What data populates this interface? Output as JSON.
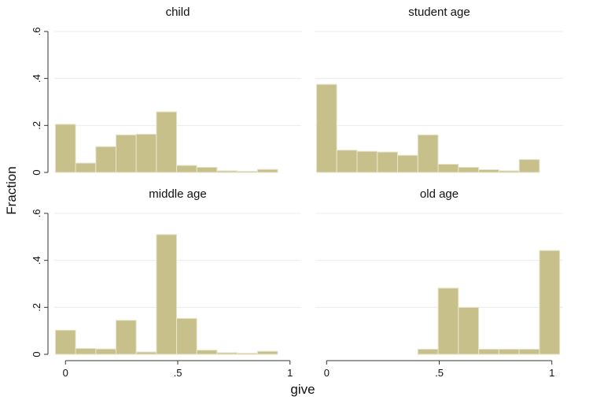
{
  "chart_data": {
    "type": "bar",
    "layout": "2x2 facets",
    "xlabel": "give",
    "ylabel": "Fraction",
    "xlim": [
      -0.05,
      1.05
    ],
    "ylim": [
      0,
      0.62
    ],
    "xticks": [
      0,
      0.5,
      1
    ],
    "xtick_labels": [
      "0",
      ".5",
      "1"
    ],
    "yticks": [
      0,
      0.2,
      0.4,
      0.6
    ],
    "ytick_labels": [
      "0",
      ".2",
      ".4",
      ".6"
    ],
    "bar_color": "#c8c08a",
    "bins": [
      [
        -0.045,
        0.045
      ],
      [
        0.045,
        0.135
      ],
      [
        0.135,
        0.225
      ],
      [
        0.225,
        0.315
      ],
      [
        0.315,
        0.405
      ],
      [
        0.405,
        0.495
      ],
      [
        0.495,
        0.585
      ],
      [
        0.585,
        0.675
      ],
      [
        0.675,
        0.765
      ],
      [
        0.765,
        0.855
      ],
      [
        0.855,
        0.945
      ],
      [
        0.945,
        1.035
      ]
    ],
    "panels": [
      {
        "title": "child",
        "values": [
          0.205,
          0.04,
          0.11,
          0.16,
          0.163,
          0.258,
          0.03,
          0.022,
          0.007,
          0.005,
          0.013,
          0
        ]
      },
      {
        "title": "student age",
        "values": [
          0.375,
          0.095,
          0.09,
          0.087,
          0.073,
          0.16,
          0.035,
          0.022,
          0.012,
          0.007,
          0.055,
          0
        ]
      },
      {
        "title": "middle age",
        "values": [
          0.103,
          0.025,
          0.023,
          0.145,
          0.01,
          0.51,
          0.153,
          0.018,
          0.007,
          0.005,
          0.013,
          0
        ]
      },
      {
        "title": "old age",
        "values": [
          0,
          0,
          0,
          0,
          0,
          0.022,
          0.282,
          0.2,
          0.022,
          0.022,
          0.022,
          0.442
        ]
      }
    ]
  }
}
